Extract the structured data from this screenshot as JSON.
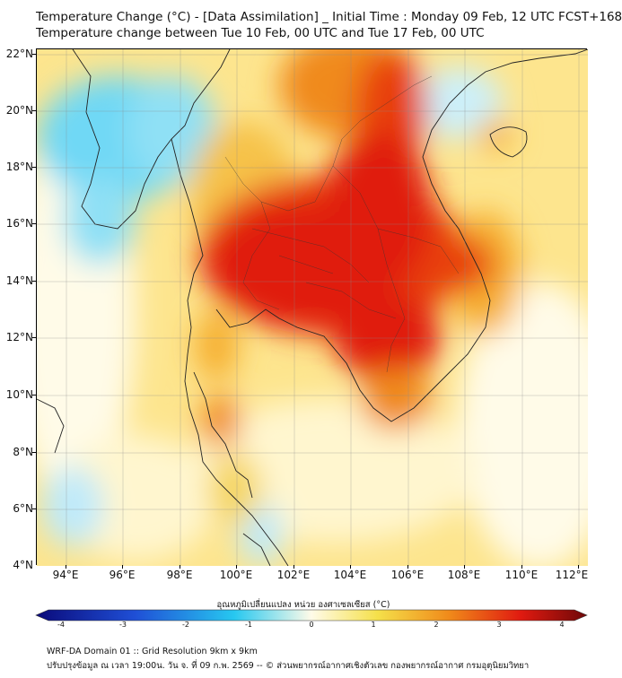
{
  "title_line1": "Temperature Change (°C) - [Data Assimilation] _ Initial Time : Monday 09 Feb, 12 UTC FCST+168",
  "title_line2": "Temperature change between Tue 10 Feb, 00 UTC and Tue 17 Feb, 00 UTC",
  "y_labels": [
    "22°N",
    "20°N",
    "18°N",
    "16°N",
    "14°N",
    "12°N",
    "10°N",
    "8°N",
    "6°N",
    "4°N"
  ],
  "x_labels": [
    "94°E",
    "96°E",
    "98°E",
    "100°E",
    "102°E",
    "104°E",
    "106°E",
    "108°E",
    "110°E",
    "112°E"
  ],
  "colorbar": {
    "label": "อุณหภูมิเปลี่ยนแปลง หน่วย องศาเซลเซียส (°C)",
    "ticks": [
      "-4",
      "-3",
      "-2",
      "-1",
      "0",
      "1",
      "2",
      "3",
      "4"
    ],
    "colors": {
      "cold_end": "#0a0a7a",
      "blue": "#1f4fd6",
      "cyan": "#27c8f0",
      "neutral": "#fffbe8",
      "yellow": "#f5e04a",
      "orange": "#f08a1a",
      "red": "#e01a10",
      "warm_end": "#6e0808"
    }
  },
  "footer_line1": "WRF-DA Domain 01 :: Grid Resolution 9km x 9km",
  "footer_line2": "ปรับปรุงข้อมูล ณ เวลา 19:00น. วัน จ. ที่ 09 ก.พ. 2569 -- © ส่วนพยากรณ์อากาศเชิงตัวเลข กองพยากรณ์อากาศ กรมอุตุนิยมวิทยา"
}
